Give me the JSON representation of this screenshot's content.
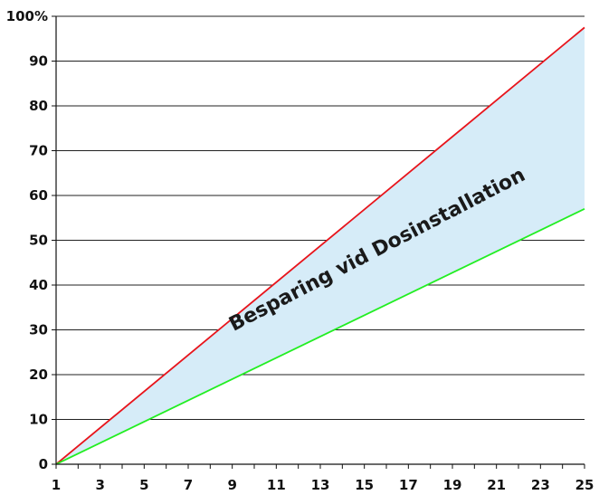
{
  "chart_data": {
    "type": "line",
    "x": [
      1,
      25
    ],
    "xlim": [
      1,
      25
    ],
    "ylim": [
      0,
      100
    ],
    "x_tick_labels": [
      "1",
      "3",
      "5",
      "7",
      "9",
      "11",
      "13",
      "15",
      "17",
      "19",
      "21",
      "23",
      "25"
    ],
    "y_tick_labels": [
      "0",
      "10",
      "20",
      "30",
      "40",
      "50",
      "60",
      "70",
      "80",
      "90",
      "100%"
    ],
    "grid": "horizontal",
    "series": [
      {
        "values": [
          0,
          97.5
        ],
        "color": "#e8141b"
      },
      {
        "values": [
          0,
          57
        ],
        "color": "#22ee22"
      }
    ],
    "fill_between": {
      "color": "#d6ecf8"
    },
    "annotation": "Besparing vid Dosinstallation"
  }
}
